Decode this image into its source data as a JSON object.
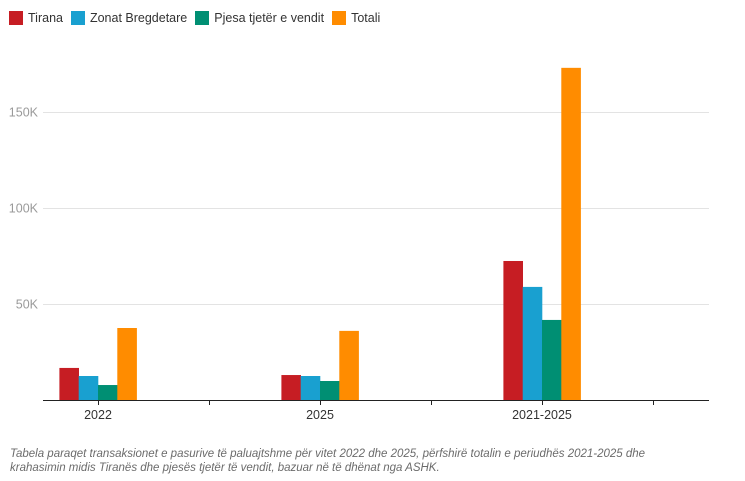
{
  "chart_data": {
    "type": "bar",
    "title": "",
    "xlabel": "",
    "ylabel": "",
    "categories": [
      "2022",
      "2025",
      "2021-2025"
    ],
    "series": [
      {
        "name": "Tirana",
        "color": "#c61d23",
        "values": [
          16700,
          13000,
          72400
        ]
      },
      {
        "name": "Zonat Bregdetare",
        "color": "#19a0d0",
        "values": [
          12500,
          12500,
          58900
        ]
      },
      {
        "name": "Pjesa tjetër e vendit",
        "color": "#008f73",
        "values": [
          7800,
          9900,
          41700
        ]
      },
      {
        "name": "Totali",
        "color": "#ff8c00",
        "values": [
          37500,
          36000,
          173000
        ]
      }
    ],
    "ylim": [
      0,
      180000
    ],
    "yticks": [
      {
        "value": 50000,
        "label": "50K"
      },
      {
        "value": 100000,
        "label": "100K"
      },
      {
        "value": 150000,
        "label": "150K"
      }
    ],
    "grid": true,
    "legend_position": "top-left"
  },
  "caption": "Tabela paraqet transaksionet e pasurive të paluajtshme për vitet 2022 dhe 2025, përfshirë totalin e periudhës 2021-2025 dhe krahasimin midis Tiranës dhe pjesës tjetër të vendit, bazuar në të dhënat nga ASHK."
}
